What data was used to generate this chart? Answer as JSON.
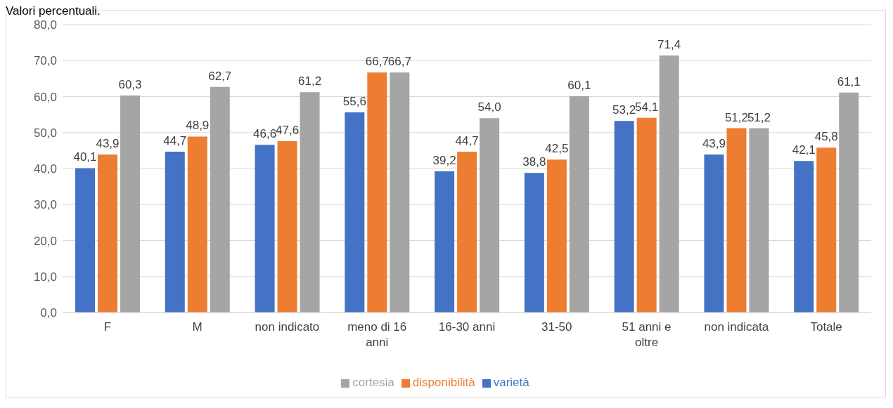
{
  "chart_data": {
    "type": "bar",
    "title": "Valori percentuali.",
    "categories": [
      "F",
      "M",
      "non indicato",
      "meno di 16 anni",
      "16-30 anni",
      "31-50",
      "51 anni e oltre",
      "non indicata",
      "Totale"
    ],
    "series": [
      {
        "name": "varietà",
        "color": "#4472c4",
        "values": [
          40.1,
          44.7,
          46.6,
          55.6,
          39.2,
          38.8,
          53.2,
          43.9,
          42.1
        ],
        "value_labels": [
          "40,1",
          "44,7",
          "46,6",
          "55,6",
          "39,2",
          "38,8",
          "53,2",
          "43,9",
          "42,1"
        ]
      },
      {
        "name": "disponibilità",
        "color": "#ed7d31",
        "values": [
          43.9,
          48.9,
          47.6,
          66.7,
          44.7,
          42.5,
          54.1,
          51.2,
          45.8
        ],
        "value_labels": [
          "43,9",
          "48,9",
          "47,6",
          "66,7",
          "44,7",
          "42,5",
          "54,1",
          "51,2",
          "45,8"
        ]
      },
      {
        "name": "cortesia",
        "color": "#a5a5a5",
        "values": [
          60.3,
          62.7,
          61.2,
          66.7,
          54.0,
          60.1,
          71.4,
          51.2,
          61.1
        ],
        "value_labels": [
          "60,3",
          "62,7",
          "61,2",
          "66,7",
          "54,0",
          "60,1",
          "71,4",
          "51,2",
          "61,1"
        ]
      }
    ],
    "ylim": [
      0,
      80
    ],
    "yticks": [
      {
        "value": 0,
        "label": "0,0"
      },
      {
        "value": 10,
        "label": "10,0"
      },
      {
        "value": 20,
        "label": "20,0"
      },
      {
        "value": 30,
        "label": "30,0"
      },
      {
        "value": 40,
        "label": "40,0"
      },
      {
        "value": 50,
        "label": "50,0"
      },
      {
        "value": 60,
        "label": "60,0"
      },
      {
        "value": 70,
        "label": "70,0"
      },
      {
        "value": 80,
        "label": "80,0"
      }
    ],
    "grid": "y",
    "legend": "bottom"
  }
}
